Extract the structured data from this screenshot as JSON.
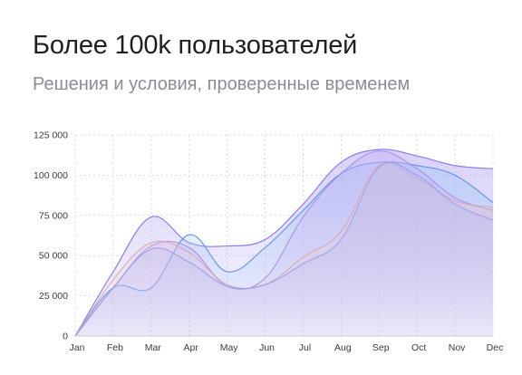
{
  "header": {
    "title": "Более 100k пользователей",
    "subtitle": "Решения и условия, проверенные временем"
  },
  "chart_data": {
    "type": "area",
    "categories": [
      "Jan",
      "Feb",
      "Mar",
      "Apr",
      "May",
      "Jun",
      "Jul",
      "Aug",
      "Sep",
      "Oct",
      "Nov",
      "Dec"
    ],
    "ylim": [
      0,
      125000
    ],
    "yticks": [
      0,
      25000,
      50000,
      75000,
      100000,
      125000
    ],
    "ytick_labels": [
      "0",
      "25 000",
      "50 000",
      "75 000",
      "100 000",
      "125 000"
    ],
    "grid": true,
    "series": [
      {
        "color": "#a99af0",
        "stroke": "#7b68e6",
        "values": [
          0,
          40000,
          74000,
          58000,
          56000,
          60000,
          82000,
          108000,
          116000,
          112000,
          106000,
          104000
        ]
      },
      {
        "color": "#9ec4f7",
        "stroke": "#4f8ef0",
        "values": [
          0,
          30000,
          30000,
          63000,
          40000,
          55000,
          78000,
          101000,
          108000,
          106000,
          100000,
          83000
        ]
      },
      {
        "color": "#c6b2f5",
        "stroke": "#a78bef",
        "values": [
          0,
          30000,
          56000,
          55000,
          31000,
          36000,
          74000,
          101000,
          115000,
          104000,
          86000,
          78000
        ]
      },
      {
        "color": "#e8c9d0",
        "stroke": "#d8a4b0",
        "values": [
          0,
          35000,
          58000,
          52000,
          32000,
          32000,
          49000,
          65000,
          106000,
          98000,
          84000,
          80000
        ]
      },
      {
        "color": "#b4b8f2",
        "stroke": "#9a9fe8",
        "values": [
          0,
          30000,
          54000,
          46000,
          31000,
          32000,
          45000,
          60000,
          105000,
          100000,
          82000,
          72000
        ]
      }
    ]
  }
}
